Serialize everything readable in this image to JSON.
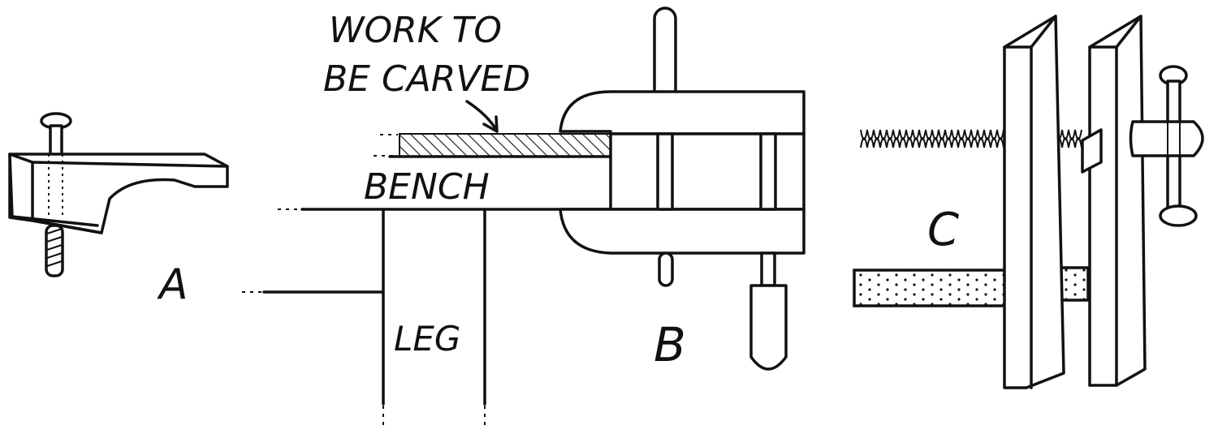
{
  "labels": {
    "a": "A",
    "b": "B",
    "c": "C",
    "work_line1": "WORK TO",
    "work_line2": "BE CARVED",
    "bench": "BENCH",
    "leg": "LEG"
  },
  "colors": {
    "ink": "#111111",
    "paper": "#ffffff"
  }
}
